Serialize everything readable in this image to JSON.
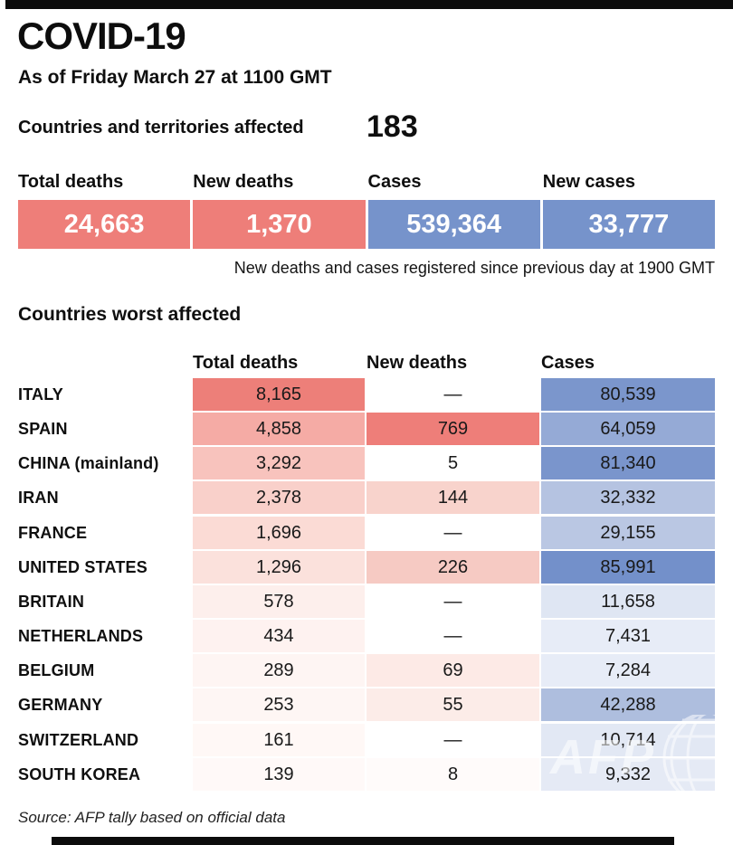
{
  "header": {
    "title": "COVID-19",
    "as_of": "As of Friday March 27 at 1100 GMT",
    "affected_label": "Countries and territories affected",
    "affected_count": "183"
  },
  "summary": {
    "note": "New deaths and cases registered since previous day at 1900 GMT",
    "boxes": [
      {
        "label": "Total deaths",
        "value": "24,663",
        "color": "#ee7e79"
      },
      {
        "label": "New deaths",
        "value": "1,370",
        "color": "#ee7e79"
      },
      {
        "label": "Cases",
        "value": "539,364",
        "color": "#7693cb"
      },
      {
        "label": "New cases",
        "value": "33,777",
        "color": "#7693cb"
      }
    ]
  },
  "table": {
    "title": "Countries worst affected",
    "columns": [
      "Total deaths",
      "New deaths",
      "Cases"
    ],
    "rows": [
      {
        "country": "ITALY",
        "total_deaths": "8,165",
        "new_deaths": "—",
        "cases": "80,539",
        "td_bg": "#ed7f79",
        "nd_bg": "#ffffff",
        "cases_bg": "#7b96cc"
      },
      {
        "country": "SPAIN",
        "total_deaths": "4,858",
        "new_deaths": "769",
        "cases": "64,059",
        "td_bg": "#f5aba5",
        "nd_bg": "#ee7e79",
        "cases_bg": "#95aad6"
      },
      {
        "country": "CHINA (mainland)",
        "total_deaths": "3,292",
        "new_deaths": "5",
        "cases": "81,340",
        "td_bg": "#f8c3bd",
        "nd_bg": "#ffffff",
        "cases_bg": "#7a95cc"
      },
      {
        "country": "IRAN",
        "total_deaths": "2,378",
        "new_deaths": "144",
        "cases": "32,332",
        "td_bg": "#f9d0ca",
        "nd_bg": "#f8d3cc",
        "cases_bg": "#b5c3e1"
      },
      {
        "country": "FRANCE",
        "total_deaths": "1,696",
        "new_deaths": "—",
        "cases": "29,155",
        "td_bg": "#fbdbd5",
        "nd_bg": "#ffffff",
        "cases_bg": "#bac7e3"
      },
      {
        "country": "UNITED STATES",
        "total_deaths": "1,296",
        "new_deaths": "226",
        "cases": "85,991",
        "td_bg": "#fbe1dc",
        "nd_bg": "#f6cac3",
        "cases_bg": "#7390ca"
      },
      {
        "country": "BRITAIN",
        "total_deaths": "578",
        "new_deaths": "—",
        "cases": "11,658",
        "td_bg": "#fdefec",
        "nd_bg": "#ffffff",
        "cases_bg": "#dfe6f3"
      },
      {
        "country": "NETHERLANDS",
        "total_deaths": "434",
        "new_deaths": "—",
        "cases": "7,431",
        "td_bg": "#fef2f0",
        "nd_bg": "#ffffff",
        "cases_bg": "#e7ecf7"
      },
      {
        "country": "BELGIUM",
        "total_deaths": "289",
        "new_deaths": "69",
        "cases": "7,284",
        "td_bg": "#fef5f3",
        "nd_bg": "#fdeae6",
        "cases_bg": "#e7ecf7"
      },
      {
        "country": "GERMANY",
        "total_deaths": "253",
        "new_deaths": "55",
        "cases": "42,288",
        "td_bg": "#fef6f4",
        "nd_bg": "#fcece8",
        "cases_bg": "#aebede"
      },
      {
        "country": "SWITZERLAND",
        "total_deaths": "161",
        "new_deaths": "—",
        "cases": "10,714",
        "td_bg": "#fff8f6",
        "nd_bg": "#ffffff",
        "cases_bg": "#e2e8f4"
      },
      {
        "country": "SOUTH KOREA",
        "total_deaths": "139",
        "new_deaths": "8",
        "cases": "9,332",
        "td_bg": "#fff9f8",
        "nd_bg": "#fffbfa",
        "cases_bg": "#e5eaf5"
      }
    ]
  },
  "source": "Source: AFP tally based on official data",
  "watermark": "AFP",
  "colors": {
    "red_strong": "#ee7e79",
    "blue_strong": "#7693cb",
    "bar_black": "#0c0c0c",
    "text": "#0f0f0f"
  },
  "chart_data": {
    "type": "table",
    "title": "Countries worst affected",
    "subtitle": "As of Friday March 27 at 1100 GMT",
    "countries_affected": 183,
    "totals": {
      "total_deaths": 24663,
      "new_deaths": 1370,
      "cases": 539364,
      "new_cases": 33777
    },
    "columns": [
      "Country",
      "Total deaths",
      "New deaths",
      "Cases"
    ],
    "rows": [
      [
        "ITALY",
        8165,
        null,
        80539
      ],
      [
        "SPAIN",
        4858,
        769,
        64059
      ],
      [
        "CHINA (mainland)",
        3292,
        5,
        81340
      ],
      [
        "IRAN",
        2378,
        144,
        32332
      ],
      [
        "FRANCE",
        1696,
        null,
        29155
      ],
      [
        "UNITED STATES",
        1296,
        226,
        85991
      ],
      [
        "BRITAIN",
        578,
        null,
        11658
      ],
      [
        "NETHERLANDS",
        434,
        null,
        7431
      ],
      [
        "BELGIUM",
        289,
        69,
        7284
      ],
      [
        "GERMANY",
        253,
        55,
        42288
      ],
      [
        "SWITZERLAND",
        161,
        null,
        10714
      ],
      [
        "SOUTH KOREA",
        139,
        8,
        9332
      ]
    ],
    "legend_note": "New deaths and cases registered since previous day at 1900 GMT",
    "style": "heatmap-shaded cells: deaths columns red scale, cases column blue scale"
  }
}
